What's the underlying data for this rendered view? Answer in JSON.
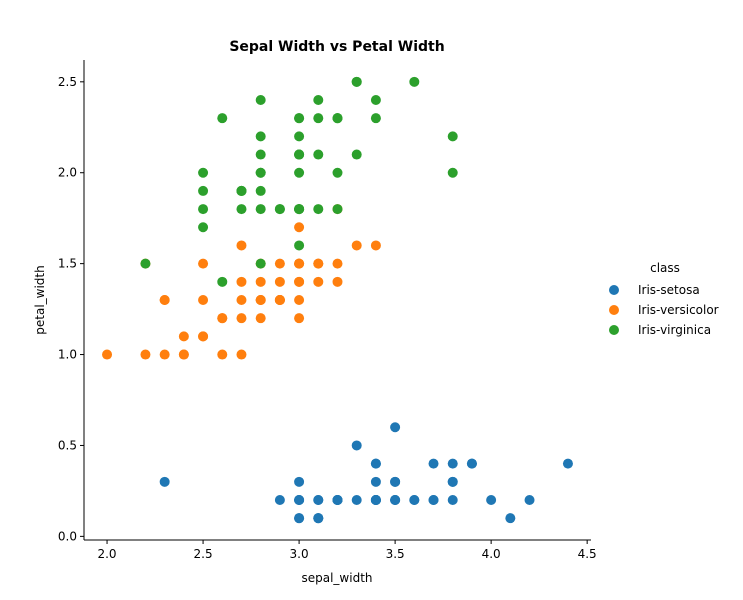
{
  "chart_data": {
    "type": "scatter",
    "title": "Sepal Width vs Petal Width",
    "xlabel": "sepal_width",
    "ylabel": "petal_width",
    "xlim": [
      1.88,
      4.52
    ],
    "ylim": [
      -0.02,
      2.62
    ],
    "xticks": [
      2.0,
      2.5,
      3.0,
      3.5,
      4.0,
      4.5
    ],
    "xtick_labels": [
      "2.0",
      "2.5",
      "3.0",
      "3.5",
      "4.0",
      "4.5"
    ],
    "yticks": [
      0.0,
      0.5,
      1.0,
      1.5,
      2.0,
      2.5
    ],
    "ytick_labels": [
      "0.0",
      "0.5",
      "1.0",
      "1.5",
      "2.0",
      "2.5"
    ],
    "grid": false,
    "legend": {
      "title": "class",
      "placement": "right"
    },
    "series": [
      {
        "name": "Iris-setosa",
        "color": "#1f77b4",
        "points": [
          [
            3.5,
            0.2
          ],
          [
            3.0,
            0.2
          ],
          [
            3.2,
            0.2
          ],
          [
            3.1,
            0.2
          ],
          [
            3.6,
            0.2
          ],
          [
            3.9,
            0.4
          ],
          [
            3.4,
            0.3
          ],
          [
            3.4,
            0.2
          ],
          [
            2.9,
            0.2
          ],
          [
            3.1,
            0.1
          ],
          [
            3.7,
            0.2
          ],
          [
            3.4,
            0.2
          ],
          [
            3.0,
            0.1
          ],
          [
            3.0,
            0.1
          ],
          [
            4.0,
            0.2
          ],
          [
            4.4,
            0.4
          ],
          [
            3.9,
            0.4
          ],
          [
            3.5,
            0.3
          ],
          [
            3.8,
            0.3
          ],
          [
            3.8,
            0.3
          ],
          [
            3.4,
            0.2
          ],
          [
            3.7,
            0.4
          ],
          [
            3.6,
            0.2
          ],
          [
            3.3,
            0.5
          ],
          [
            3.4,
            0.2
          ],
          [
            3.0,
            0.2
          ],
          [
            3.4,
            0.4
          ],
          [
            3.5,
            0.2
          ],
          [
            3.4,
            0.2
          ],
          [
            3.2,
            0.2
          ],
          [
            3.1,
            0.2
          ],
          [
            3.4,
            0.4
          ],
          [
            4.1,
            0.1
          ],
          [
            4.2,
            0.2
          ],
          [
            3.1,
            0.1
          ],
          [
            3.2,
            0.2
          ],
          [
            3.5,
            0.2
          ],
          [
            3.1,
            0.1
          ],
          [
            3.0,
            0.2
          ],
          [
            3.4,
            0.2
          ],
          [
            3.5,
            0.3
          ],
          [
            2.3,
            0.3
          ],
          [
            3.2,
            0.2
          ],
          [
            3.5,
            0.6
          ],
          [
            3.8,
            0.4
          ],
          [
            3.0,
            0.3
          ],
          [
            3.8,
            0.2
          ],
          [
            3.2,
            0.2
          ],
          [
            3.7,
            0.2
          ],
          [
            3.3,
            0.2
          ]
        ]
      },
      {
        "name": "Iris-versicolor",
        "color": "#ff7f0e",
        "points": [
          [
            3.2,
            1.4
          ],
          [
            3.2,
            1.5
          ],
          [
            3.1,
            1.5
          ],
          [
            2.3,
            1.3
          ],
          [
            2.8,
            1.5
          ],
          [
            2.8,
            1.3
          ],
          [
            3.3,
            1.6
          ],
          [
            2.4,
            1.0
          ],
          [
            2.9,
            1.3
          ],
          [
            2.7,
            1.4
          ],
          [
            2.0,
            1.0
          ],
          [
            3.0,
            1.5
          ],
          [
            2.2,
            1.0
          ],
          [
            2.9,
            1.4
          ],
          [
            2.9,
            1.3
          ],
          [
            3.1,
            1.4
          ],
          [
            3.0,
            1.5
          ],
          [
            2.7,
            1.0
          ],
          [
            2.2,
            1.5
          ],
          [
            2.5,
            1.1
          ],
          [
            3.2,
            1.8
          ],
          [
            2.8,
            1.3
          ],
          [
            2.5,
            1.5
          ],
          [
            2.8,
            1.2
          ],
          [
            2.9,
            1.3
          ],
          [
            3.0,
            1.4
          ],
          [
            2.8,
            1.4
          ],
          [
            3.0,
            1.7
          ],
          [
            2.9,
            1.5
          ],
          [
            2.6,
            1.0
          ],
          [
            2.4,
            1.1
          ],
          [
            2.4,
            1.0
          ],
          [
            2.7,
            1.2
          ],
          [
            2.7,
            1.6
          ],
          [
            3.0,
            1.5
          ],
          [
            3.4,
            1.6
          ],
          [
            3.1,
            1.5
          ],
          [
            2.3,
            1.3
          ],
          [
            3.0,
            1.3
          ],
          [
            2.5,
            1.3
          ],
          [
            2.6,
            1.2
          ],
          [
            3.0,
            1.4
          ],
          [
            2.6,
            1.2
          ],
          [
            2.3,
            1.0
          ],
          [
            2.7,
            1.3
          ],
          [
            3.0,
            1.2
          ],
          [
            2.9,
            1.3
          ],
          [
            2.9,
            1.3
          ],
          [
            2.5,
            1.1
          ],
          [
            2.8,
            1.3
          ]
        ]
      },
      {
        "name": "Iris-virginica",
        "color": "#2ca02c",
        "points": [
          [
            3.3,
            2.5
          ],
          [
            2.7,
            1.9
          ],
          [
            3.0,
            2.1
          ],
          [
            2.9,
            1.8
          ],
          [
            3.0,
            2.2
          ],
          [
            3.0,
            2.1
          ],
          [
            2.5,
            1.7
          ],
          [
            2.9,
            1.8
          ],
          [
            2.5,
            1.8
          ],
          [
            3.6,
            2.5
          ],
          [
            3.2,
            2.0
          ],
          [
            2.7,
            1.9
          ],
          [
            3.0,
            2.1
          ],
          [
            2.5,
            2.0
          ],
          [
            2.8,
            2.4
          ],
          [
            3.2,
            2.3
          ],
          [
            3.0,
            1.8
          ],
          [
            3.8,
            2.2
          ],
          [
            2.6,
            2.3
          ],
          [
            2.2,
            1.5
          ],
          [
            3.2,
            2.3
          ],
          [
            2.8,
            2.0
          ],
          [
            2.8,
            2.0
          ],
          [
            2.7,
            1.8
          ],
          [
            3.3,
            2.1
          ],
          [
            3.2,
            1.8
          ],
          [
            2.8,
            1.8
          ],
          [
            3.0,
            1.8
          ],
          [
            2.8,
            2.1
          ],
          [
            3.0,
            1.6
          ],
          [
            2.8,
            1.9
          ],
          [
            3.8,
            2.0
          ],
          [
            2.8,
            2.2
          ],
          [
            2.8,
            1.5
          ],
          [
            2.6,
            1.4
          ],
          [
            3.0,
            2.3
          ],
          [
            3.4,
            2.4
          ],
          [
            3.1,
            1.8
          ],
          [
            3.0,
            1.8
          ],
          [
            3.1,
            2.1
          ],
          [
            3.1,
            2.4
          ],
          [
            3.1,
            2.3
          ],
          [
            2.7,
            1.9
          ],
          [
            3.2,
            2.3
          ],
          [
            3.3,
            2.5
          ],
          [
            3.0,
            2.3
          ],
          [
            2.5,
            1.9
          ],
          [
            3.0,
            2.0
          ],
          [
            3.4,
            2.3
          ],
          [
            3.0,
            1.8
          ]
        ]
      }
    ]
  }
}
